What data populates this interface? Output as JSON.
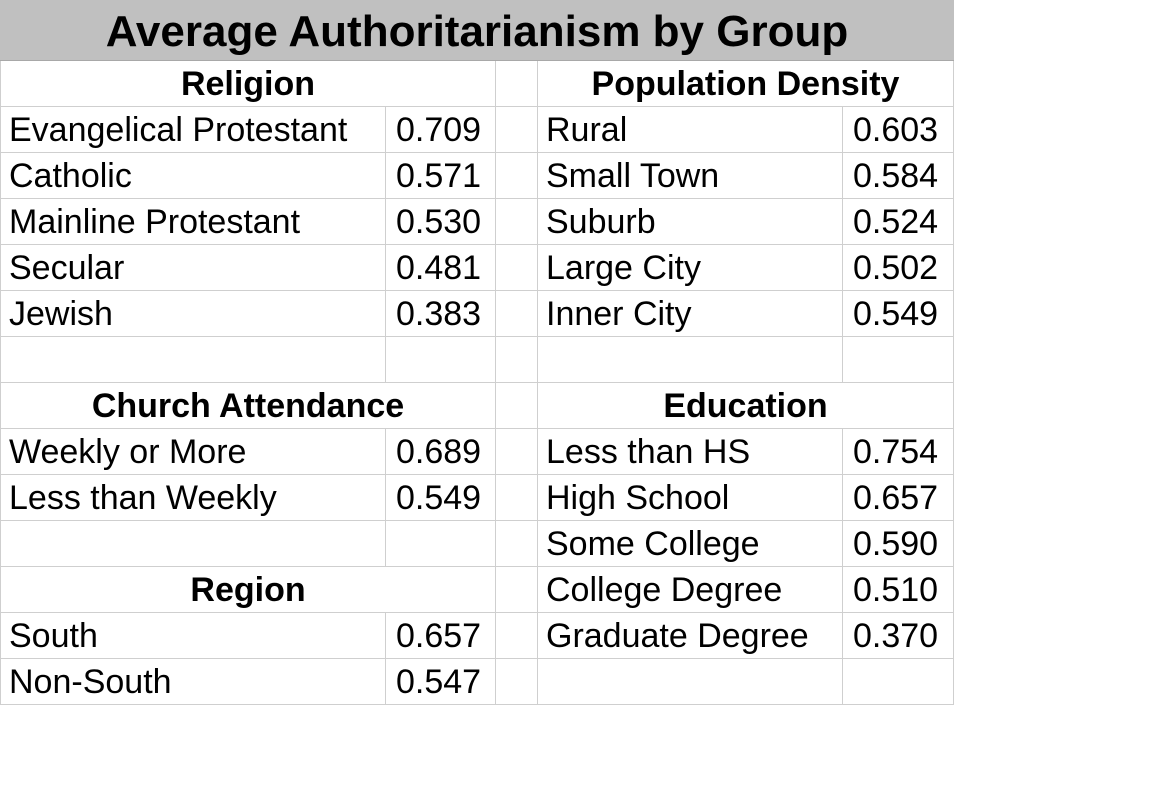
{
  "chart_data": {
    "type": "table",
    "title": "Average Authoritarianism by Group",
    "groups": [
      {
        "name": "Religion",
        "rows": [
          {
            "label": "Evangelical Protestant",
            "value": "0.709"
          },
          {
            "label": "Catholic",
            "value": "0.571"
          },
          {
            "label": "Mainline Protestant",
            "value": "0.530"
          },
          {
            "label": "Secular",
            "value": "0.481"
          },
          {
            "label": "Jewish",
            "value": "0.383"
          }
        ]
      },
      {
        "name": "Church Attendance",
        "rows": [
          {
            "label": "Weekly or More",
            "value": "0.689"
          },
          {
            "label": "Less than Weekly",
            "value": "0.549"
          }
        ]
      },
      {
        "name": "Region",
        "rows": [
          {
            "label": "South",
            "value": "0.657"
          },
          {
            "label": "Non-South",
            "value": "0.547"
          }
        ]
      },
      {
        "name": "Population Density",
        "rows": [
          {
            "label": "Rural",
            "value": "0.603"
          },
          {
            "label": "Small Town",
            "value": "0.584"
          },
          {
            "label": "Suburb",
            "value": "0.524"
          },
          {
            "label": "Large City",
            "value": "0.502"
          },
          {
            "label": "Inner City",
            "value": "0.549"
          }
        ]
      },
      {
        "name": "Education",
        "rows": [
          {
            "label": "Less than HS",
            "value": "0.754"
          },
          {
            "label": "High School",
            "value": "0.657"
          },
          {
            "label": "Some College",
            "value": "0.590"
          },
          {
            "label": "College Degree",
            "value": "0.510"
          },
          {
            "label": "Graduate Degree",
            "value": "0.370"
          }
        ]
      }
    ]
  }
}
